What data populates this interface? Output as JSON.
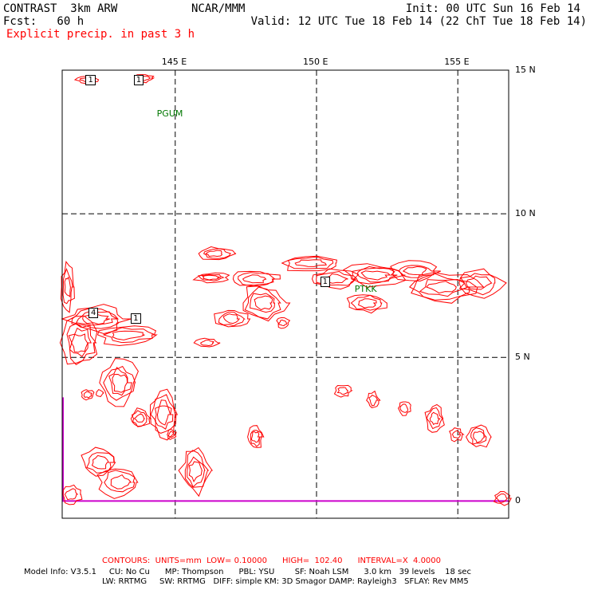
{
  "header": {
    "model_title": "CONTRAST  3km ARW",
    "forecast": "Fcst:   60 h",
    "field": "Explicit precip. in past 3 h",
    "center": "NCAR/MMM",
    "init": "Init: 00 UTC Sun 16 Feb 14",
    "valid": "Valid: 12 UTC Tue 18 Feb 14 (22 ChT Tue 18 Feb 14)"
  },
  "map": {
    "lon_labels": [
      "145 E",
      "150 E",
      "155 E"
    ],
    "lat_labels": [
      "15 N",
      "10 N",
      "5 N",
      "0"
    ],
    "lon_lines": [
      145,
      150,
      155
    ],
    "lat_lines": [
      15,
      10,
      5
    ],
    "extent": {
      "lon_min": 141,
      "lon_max": 156.8,
      "lat_min": -0.6,
      "lat_max": 15
    },
    "stations": [
      {
        "name": "PGUM",
        "lon": 144.8,
        "lat": 13.5
      },
      {
        "name": "PTKK",
        "lon": 151.8,
        "lat": 7.4
      }
    ],
    "contour_labels": [
      {
        "text": "1",
        "lon": 142.0,
        "lat": 14.6
      },
      {
        "text": "1",
        "lon": 143.7,
        "lat": 14.6
      },
      {
        "text": "4",
        "lon": 142.1,
        "lat": 6.5
      },
      {
        "text": "1",
        "lon": 143.6,
        "lat": 6.3
      },
      {
        "text": "1",
        "lon": 150.3,
        "lat": 7.6
      }
    ],
    "colors": {
      "contour": "#ff0000",
      "frame": "#000000",
      "equator_line": "#cc00cc",
      "station": "#007700",
      "label_red": "#ff0000"
    }
  },
  "footer": {
    "contours_line": "CONTOURS:  UNITS=mm  LOW= 0.10000      HIGH=  102.40      INTERVAL=X  4.0000",
    "model_info_1": "Model Info: V3.5.1     CU: No Cu      MP: Thompson      PBL: YSU        SF: Noah LSM      3.0 km   39 levels    18 sec",
    "model_info_2": "LW: RRTMG     SW: RRTMG   DIFF: simple KM: 3D Smagor DAMP: Rayleigh3   SFLAY: Rev MM5"
  }
}
